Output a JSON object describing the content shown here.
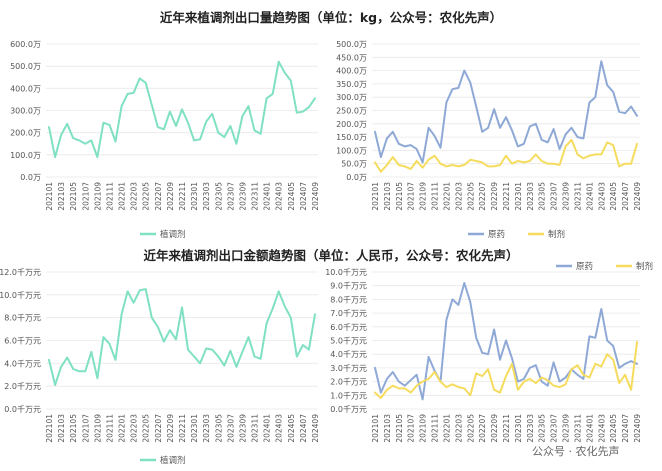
{
  "titles": {
    "top": "近年来植调剂出口量趋势图（单位：kg，公众号：农化先声）",
    "bottom": "近年来植调剂出口金额趋势图（单位：人民币，公众号：农化先声）"
  },
  "watermark": "公众号 · 农化先声",
  "colors": {
    "teal": "#7fe0c3",
    "blue": "#8fa9d6",
    "yellow": "#f6dc5e",
    "grid": "#e8e8e8"
  },
  "months": [
    "202101",
    "202102",
    "202103",
    "202104",
    "202105",
    "202106",
    "202107",
    "202108",
    "202109",
    "202110",
    "202111",
    "202112",
    "202201",
    "202202",
    "202203",
    "202204",
    "202205",
    "202206",
    "202207",
    "202208",
    "202209",
    "202210",
    "202211",
    "202212",
    "202301",
    "202302",
    "202303",
    "202304",
    "202305",
    "202306",
    "202307",
    "202308",
    "202309",
    "202310",
    "202311",
    "202312",
    "202401",
    "202402",
    "202403",
    "202404",
    "202405",
    "202406",
    "202407",
    "202408",
    "202409"
  ],
  "chart_data": [
    {
      "type": "line",
      "title": "近年来植调剂出口量趋势图（单位：kg，公众号：农化先声）",
      "x_ticks": [
        "202101",
        "202103",
        "202105",
        "202107",
        "202109",
        "202111",
        "202201",
        "202203",
        "202205",
        "202207",
        "202209",
        "202211",
        "202301",
        "202303",
        "202305",
        "202307",
        "202309",
        "202311",
        "202401",
        "202403",
        "202405",
        "202407",
        "202409"
      ],
      "y_ticks": [
        "0.0万",
        "100.0万",
        "200.0万",
        "300.0万",
        "400.0万",
        "500.0万",
        "600.0万"
      ],
      "ylim": [
        0,
        600
      ],
      "unit": "万",
      "series": [
        {
          "name": "植调剂",
          "color": "teal",
          "values": [
            225,
            90,
            190,
            240,
            175,
            165,
            150,
            165,
            90,
            245,
            235,
            160,
            320,
            375,
            380,
            445,
            425,
            325,
            225,
            215,
            295,
            230,
            305,
            245,
            165,
            170,
            250,
            285,
            200,
            180,
            230,
            150,
            275,
            320,
            210,
            195,
            355,
            375,
            520,
            470,
            435,
            290,
            295,
            315,
            355
          ]
        }
      ],
      "legend": "bottom",
      "grid": true
    },
    {
      "type": "line",
      "title": "近年来植调剂出口量趋势图（单位：kg，公众号：农化先声）",
      "x_ticks": [
        "202101",
        "202103",
        "202105",
        "202107",
        "202109",
        "202111",
        "202201",
        "202203",
        "202205",
        "202207",
        "202209",
        "202211",
        "202301",
        "202303",
        "202305",
        "202307",
        "202309",
        "202311",
        "202401",
        "202403",
        "202405",
        "202407",
        "202409"
      ],
      "y_ticks": [
        "0.0万",
        "50.0万",
        "100.0万",
        "150.0万",
        "200.0万",
        "250.0万",
        "300.0万",
        "350.0万",
        "400.0万",
        "450.0万",
        "500.0万"
      ],
      "ylim": [
        0,
        500
      ],
      "unit": "万",
      "series": [
        {
          "name": "原药",
          "color": "blue",
          "values": [
            170,
            75,
            145,
            170,
            125,
            115,
            120,
            105,
            55,
            185,
            155,
            110,
            280,
            330,
            335,
            400,
            355,
            265,
            170,
            185,
            255,
            185,
            225,
            175,
            115,
            125,
            190,
            200,
            140,
            130,
            180,
            105,
            160,
            185,
            150,
            145,
            280,
            300,
            435,
            345,
            320,
            245,
            240,
            265,
            230
          ]
        },
        {
          "name": "制剂",
          "color": "yellow",
          "values": [
            55,
            20,
            45,
            75,
            45,
            40,
            30,
            60,
            35,
            65,
            80,
            50,
            40,
            45,
            40,
            45,
            65,
            60,
            55,
            40,
            40,
            45,
            80,
            50,
            60,
            55,
            60,
            85,
            60,
            50,
            50,
            45,
            115,
            140,
            85,
            70,
            80,
            85,
            85,
            130,
            120,
            40,
            50,
            50,
            125
          ]
        }
      ],
      "legend": "bottom",
      "grid": true
    },
    {
      "type": "line",
      "title": "近年来植调剂出口金额趋势图（单位：人民币，公众号：农化先声）",
      "x_ticks": [
        "202101",
        "202103",
        "202105",
        "202107",
        "202109",
        "202111",
        "202201",
        "202203",
        "202205",
        "202207",
        "202209",
        "202211",
        "202301",
        "202303",
        "202305",
        "202307",
        "202309",
        "202311",
        "202401",
        "202403",
        "202405",
        "202407",
        "202409"
      ],
      "y_ticks": [
        "0.0千万元",
        "2.0千万元",
        "4.0千万元",
        "6.0千万元",
        "8.0千万元",
        "10.0千万元",
        "12.0千万元"
      ],
      "ylim": [
        0,
        12
      ],
      "unit": "千万元",
      "series": [
        {
          "name": "植调剂",
          "color": "teal",
          "values": [
            4.3,
            2.1,
            3.7,
            4.5,
            3.5,
            3.3,
            3.3,
            5.0,
            2.7,
            6.3,
            5.7,
            4.3,
            8.3,
            10.3,
            9.3,
            10.4,
            10.5,
            8.0,
            7.2,
            5.9,
            6.9,
            6.1,
            8.9,
            5.2,
            4.6,
            4.0,
            5.3,
            5.2,
            4.6,
            3.8,
            5.1,
            3.7,
            5.0,
            6.3,
            4.6,
            4.4,
            7.5,
            8.8,
            10.3,
            9.0,
            8.0,
            4.6,
            5.6,
            5.2,
            8.3
          ]
        }
      ],
      "legend": "bottom",
      "grid": true
    },
    {
      "type": "line",
      "title": "近年来植调剂出口金额趋势图（单位：人民币，公众号：农化先声）",
      "x_ticks": [
        "202101",
        "202103",
        "202105",
        "202107",
        "202109",
        "202111",
        "202201",
        "202203",
        "202205",
        "202207",
        "202209",
        "202211",
        "202301",
        "202303",
        "202305",
        "202307",
        "202309",
        "202311",
        "202401",
        "202403",
        "202405",
        "202407",
        "202409"
      ],
      "y_ticks": [
        "0.0千万元",
        "1.0千万元",
        "2.0千万元",
        "3.0千万元",
        "4.0千万元",
        "5.0千万元",
        "6.0千万元",
        "7.0千万元",
        "8.0千万元",
        "9.0千万元",
        "10.0千万元"
      ],
      "ylim": [
        0,
        10
      ],
      "unit": "千万元",
      "series": [
        {
          "name": "原药",
          "color": "blue",
          "values": [
            3.0,
            1.2,
            2.2,
            2.7,
            2.0,
            1.7,
            2.1,
            2.5,
            0.7,
            3.8,
            2.8,
            2.0,
            6.5,
            8.0,
            7.6,
            9.2,
            7.8,
            5.2,
            4.1,
            4.0,
            5.8,
            3.6,
            5.0,
            3.7,
            2.0,
            2.2,
            3.0,
            3.2,
            2.0,
            1.7,
            3.4,
            2.0,
            2.3,
            2.9,
            2.5,
            2.2,
            5.3,
            5.2,
            7.3,
            5.0,
            4.6,
            3.0,
            3.3,
            3.5,
            3.3
          ]
        },
        {
          "name": "制剂",
          "color": "yellow",
          "values": [
            1.2,
            0.8,
            1.4,
            1.7,
            1.5,
            1.5,
            1.2,
            1.7,
            2.0,
            2.2,
            2.7,
            2.0,
            1.6,
            1.8,
            1.6,
            1.5,
            1.0,
            2.6,
            2.4,
            2.9,
            1.4,
            1.2,
            2.4,
            3.3,
            1.4,
            2.0,
            2.2,
            1.9,
            2.3,
            2.1,
            1.7,
            1.6,
            1.8,
            2.9,
            3.2,
            2.5,
            2.3,
            3.3,
            3.1,
            4.0,
            3.6,
            1.9,
            2.5,
            1.4,
            4.9
          ]
        }
      ],
      "legend": "top-right",
      "grid": true
    }
  ]
}
